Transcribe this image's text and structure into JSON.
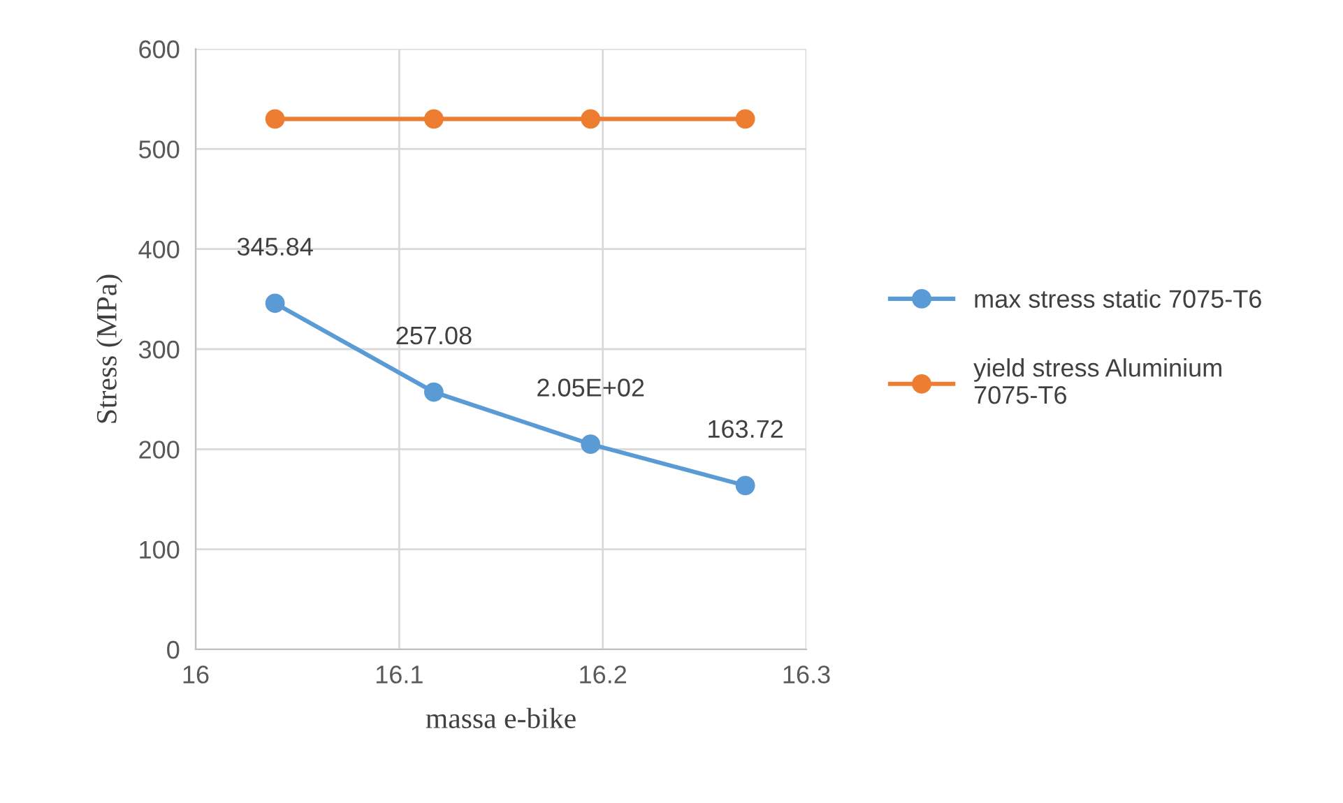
{
  "chart_data": {
    "type": "line",
    "xlabel": "massa e-bike",
    "ylabel": "Stress (MPa)",
    "x": [
      16.039,
      16.117,
      16.194,
      16.27
    ],
    "series": [
      {
        "name": "max stress static 7075-T6",
        "color": "#5b9bd5",
        "values": [
          345.84,
          257.08,
          205,
          163.72
        ],
        "value_labels": [
          "345.84",
          "257.08",
          "2.05E+02",
          "163.72"
        ]
      },
      {
        "name": "yield stress Aluminium 7075-T6",
        "color": "#ed7d31",
        "values": [
          530,
          530,
          530,
          530
        ]
      }
    ],
    "xlim": [
      16,
      16.3
    ],
    "xticks": [
      16,
      16.1,
      16.2,
      16.3
    ],
    "ylim": [
      0,
      600
    ],
    "yticks": [
      0,
      100,
      200,
      300,
      400,
      500,
      600
    ],
    "grid": true,
    "legend": "right",
    "marker": "circle",
    "line_style": "solid"
  }
}
